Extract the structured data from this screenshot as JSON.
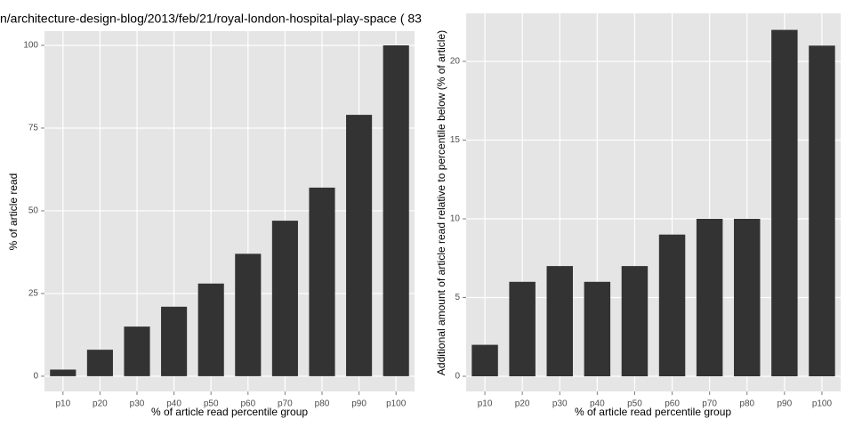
{
  "title": "n/architecture-design-blog/2013/feb/21/royal-london-hospital-play-space ( 83",
  "chart_data": [
    {
      "type": "bar",
      "x_label": "% of article read percentile group",
      "y_label": "% of article read",
      "categories": [
        "p10",
        "p20",
        "p30",
        "p40",
        "p50",
        "p60",
        "p70",
        "p80",
        "p90",
        "p100"
      ],
      "values": [
        2,
        8,
        15,
        21,
        28,
        37,
        47,
        57,
        79,
        100
      ],
      "color": "#333333",
      "ylim": [
        -4.6,
        104.3
      ],
      "yticks": [
        0,
        25,
        50,
        75,
        100
      ],
      "grid": true
    },
    {
      "type": "bar",
      "x_label": "% of article read percentile group",
      "y_label": "Additional amount of article read relative to percentile below (% of article)",
      "categories": [
        "p10",
        "p20",
        "p30",
        "p40",
        "p50",
        "p60",
        "p70",
        "p80",
        "p90",
        "p100"
      ],
      "values": [
        2,
        6,
        7,
        6,
        7,
        9,
        10,
        10,
        22,
        21
      ],
      "color": "#333333",
      "ylim": [
        -0.96,
        23.05
      ],
      "yticks": [
        0,
        5,
        10,
        15,
        20
      ],
      "grid": true
    }
  ]
}
